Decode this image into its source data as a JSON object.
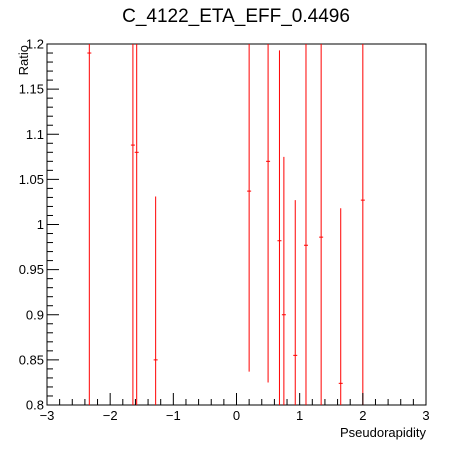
{
  "chart_data": {
    "type": "scatter",
    "title": "C_4122_ETA_EFF_0.4496",
    "xlabel": "Pseudorapidity",
    "ylabel": "Ratio",
    "xlim": [
      -3,
      3
    ],
    "ylim": [
      0.8,
      1.2
    ],
    "x_ticks": [
      -3,
      -2,
      -1,
      0,
      1,
      2,
      3
    ],
    "x_tick_labels": [
      "−3",
      "−2",
      "−1",
      "0",
      "1",
      "2",
      "3"
    ],
    "y_ticks": [
      0.8,
      0.85,
      0.9,
      0.95,
      1.0,
      1.05,
      1.1,
      1.15,
      1.2
    ],
    "y_tick_labels": [
      "0.8",
      "0.85",
      "0.9",
      "0.95",
      "1",
      "1.05",
      "1.1",
      "1.15",
      "1.2"
    ],
    "grid": false,
    "legend": "none",
    "marker_color": "#ff0000",
    "points": [
      {
        "x": -2.33,
        "y": 1.19,
        "ylow": 0.8,
        "yhigh": 1.2
      },
      {
        "x": -1.64,
        "y": 1.088,
        "ylow": 0.8,
        "yhigh": 1.2
      },
      {
        "x": -1.58,
        "y": 1.08,
        "ylow": 0.8,
        "yhigh": 1.2
      },
      {
        "x": -1.28,
        "y": 0.85,
        "ylow": 0.8,
        "yhigh": 1.031
      },
      {
        "x": 0.2,
        "y": 1.037,
        "ylow": 0.837,
        "yhigh": 1.2
      },
      {
        "x": 0.5,
        "y": 1.07,
        "ylow": 0.825,
        "yhigh": 1.2
      },
      {
        "x": 0.68,
        "y": 0.982,
        "ylow": 0.8,
        "yhigh": 1.193
      },
      {
        "x": 0.75,
        "y": 0.9,
        "ylow": 0.8,
        "yhigh": 1.075
      },
      {
        "x": 0.93,
        "y": 0.855,
        "ylow": 0.8,
        "yhigh": 1.027
      },
      {
        "x": 1.1,
        "y": 0.977,
        "ylow": 0.8,
        "yhigh": 1.2
      },
      {
        "x": 1.34,
        "y": 0.986,
        "ylow": 0.8,
        "yhigh": 1.2
      },
      {
        "x": 1.65,
        "y": 0.824,
        "ylow": 0.8,
        "yhigh": 1.018
      },
      {
        "x": 2.0,
        "y": 1.027,
        "ylow": 0.8,
        "yhigh": 1.2
      }
    ]
  }
}
